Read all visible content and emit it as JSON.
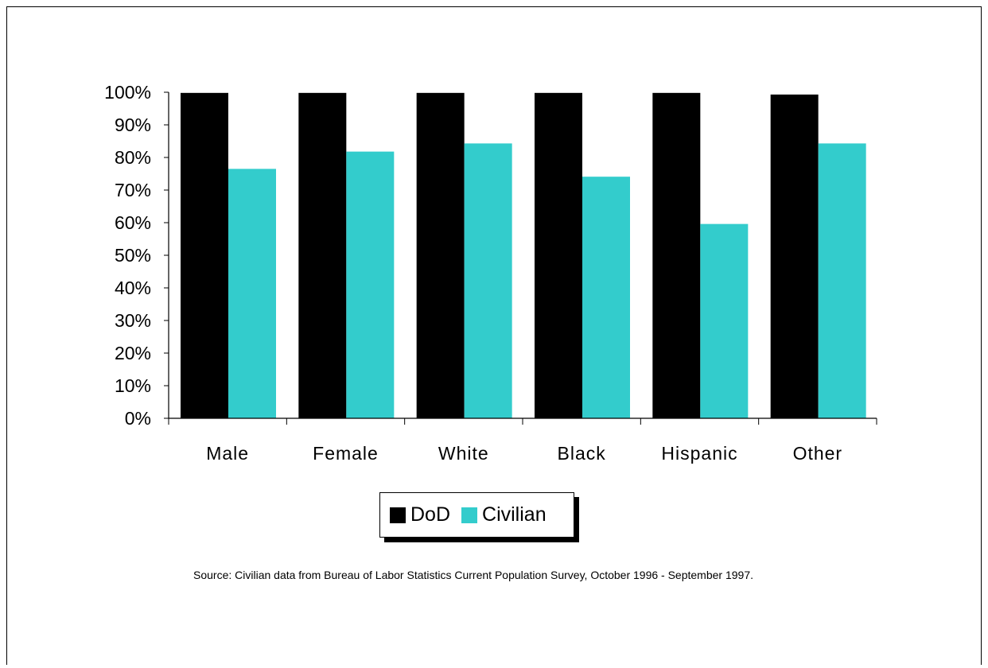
{
  "chart_data": {
    "type": "bar",
    "categories": [
      "Male",
      "Female",
      "White",
      "Black",
      "Hispanic",
      "Other"
    ],
    "series": [
      {
        "name": "DoD",
        "color": "#000000",
        "values": [
          99.8,
          99.8,
          99.8,
          99.8,
          99.8,
          99.3
        ]
      },
      {
        "name": "Civilian",
        "color": "#33CCCC",
        "values": [
          76.5,
          81.8,
          84.3,
          74.1,
          59.6,
          84.3
        ]
      }
    ],
    "yticks": [
      "0%",
      "10%",
      "20%",
      "30%",
      "40%",
      "50%",
      "60%",
      "70%",
      "80%",
      "90%",
      "100%"
    ],
    "ylim": [
      0,
      100
    ],
    "grid": false,
    "legend_position": "bottom-center"
  },
  "source_note": "Source:  Civilian data from Bureau of Labor Statistics Current Population Survey, October 1996 - September 1997."
}
